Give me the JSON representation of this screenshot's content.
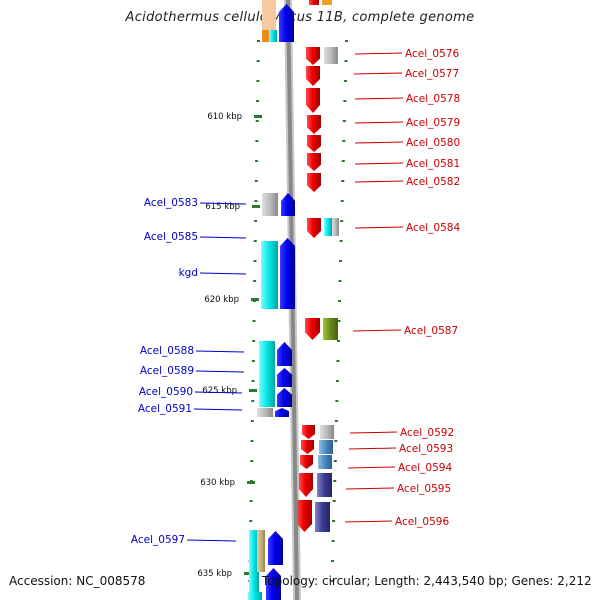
{
  "title": "Acidothermus cellulolyticus 11B, complete genome",
  "footer": {
    "accession": "Accession: NC_008578",
    "summary": "Topology: circular; Length: 2,443,540 bp; Genes: 2,212"
  },
  "scale_labels": [
    "610 kbp",
    "615 kbp",
    "620 kbp",
    "625 kbp",
    "630 kbp",
    "635 kbp"
  ],
  "colors": {
    "forward_label": "#0000cc",
    "reverse_label": "#cc0000",
    "forward_gene": "#0000ee",
    "reverse_gene": "#ee0000",
    "tick": "#2a7a2a",
    "backbone": "#888888"
  },
  "forward_labels": [
    "Acel_0583",
    "Acel_0585",
    "kgd",
    "Acel_0588",
    "Acel_0589",
    "Acel_0590",
    "Acel_0591",
    "Acel_0597"
  ],
  "reverse_labels": [
    "Acel_0576",
    "Acel_0577",
    "Acel_0578",
    "Acel_0579",
    "Acel_0580",
    "Acel_0581",
    "Acel_0582",
    "Acel_0584",
    "Acel_0587",
    "Acel_0592",
    "Acel_0593",
    "Acel_0594",
    "Acel_0595",
    "Acel_0596"
  ]
}
